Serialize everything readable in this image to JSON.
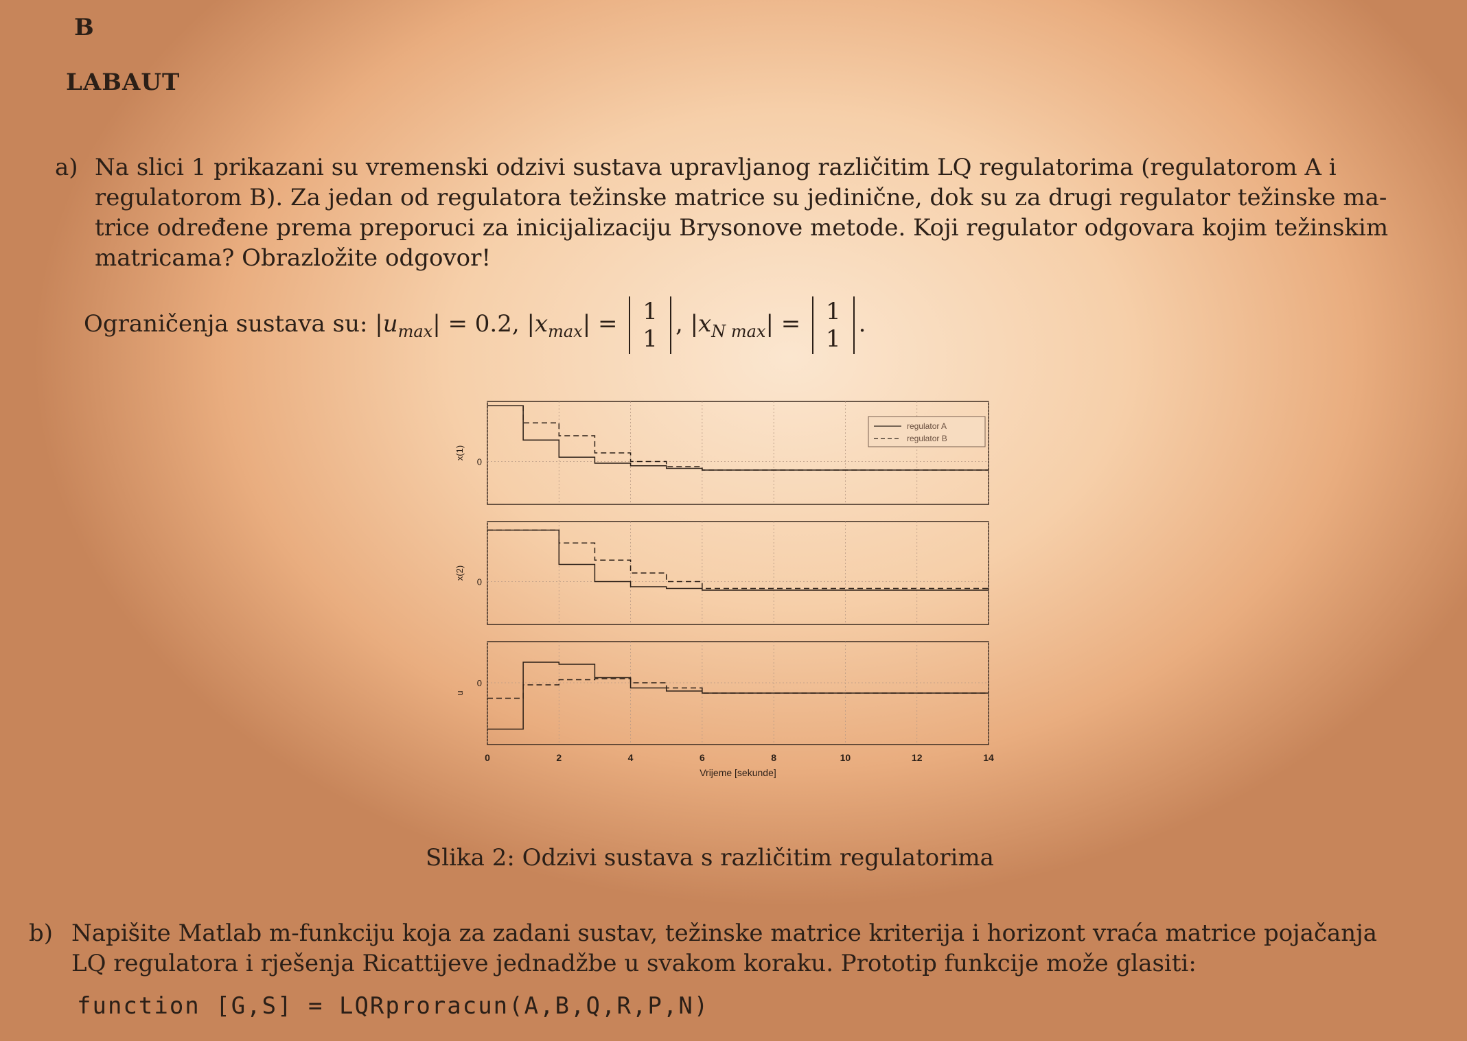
{
  "page_letter": "B",
  "heading": "LABAUT",
  "part_a": {
    "label": "a)",
    "lines": [
      "Na slici 1 prikazani su vremenski odzivi sustava upravljanog različitim LQ regulatorima (regulatorom A i",
      "regulatorom B). Za jedan od regulatora težinske matrice su jedinične, dok su za drugi regulator težinske ma-",
      "trice određene prema preporuci za inicijalizaciju Brysonove metode. Koji regulator odgovara kojim težinskim",
      "matricama? Obrazložite odgovor!"
    ],
    "constraints_prefix": "Ograničenja sustava su:",
    "u_max": "|u",
    "u_sub": "max",
    "u_val": "| = 0.2,",
    "x_max": "|x",
    "x_sub": "max",
    "x_eq": "| =",
    "xN_max": "|x",
    "xN_sub": "N max",
    "xN_eq": "| =",
    "vec_top": "1",
    "vec_bot": "1"
  },
  "figure": {
    "caption": "Slika 2: Odzivi sustava s različitim regulatorima"
  },
  "chart_data": {
    "type": "line",
    "step": true,
    "xlabel": "Vrijeme [sekunde]",
    "xlim": [
      0,
      14
    ],
    "xticks": [
      "0",
      "2",
      "4",
      "6",
      "8",
      "10",
      "12",
      "14"
    ],
    "legend": [
      "regulator A",
      "regulator B"
    ],
    "legend_position": "top-right",
    "grid": true,
    "panels": [
      {
        "ylabel": "x(1)",
        "ytick": "0",
        "ylim": [
          -0.5,
          0.7
        ],
        "series": [
          {
            "name": "regulator A",
            "x": [
              0,
              1,
              2,
              3,
              4,
              5,
              6,
              14
            ],
            "values": [
              0.65,
              0.25,
              0.05,
              -0.02,
              -0.05,
              -0.08,
              -0.1,
              -0.1
            ]
          },
          {
            "name": "regulator B",
            "x": [
              0,
              1,
              2,
              3,
              4,
              5,
              6,
              14
            ],
            "values": [
              0.65,
              0.45,
              0.3,
              0.1,
              0.0,
              -0.06,
              -0.1,
              -0.1
            ]
          }
        ]
      },
      {
        "ylabel": "x(2)",
        "ytick": "0",
        "ylim": [
          -0.5,
          0.7
        ],
        "series": [
          {
            "name": "regulator A",
            "x": [
              0,
              1,
              2,
              3,
              4,
              5,
              6,
              14
            ],
            "values": [
              0.6,
              0.6,
              0.2,
              0.0,
              -0.06,
              -0.08,
              -0.1,
              -0.1
            ]
          },
          {
            "name": "regulator B",
            "x": [
              0,
              1,
              2,
              3,
              4,
              5,
              6,
              14
            ],
            "values": [
              0.6,
              0.6,
              0.45,
              0.25,
              0.1,
              0.0,
              -0.08,
              -0.1
            ]
          }
        ]
      },
      {
        "ylabel": "u",
        "ytick": "0",
        "ylim": [
          -0.6,
          0.4
        ],
        "series": [
          {
            "name": "regulator A",
            "x": [
              0,
              1,
              2,
              3,
              4,
              5,
              6,
              14
            ],
            "values": [
              -0.45,
              0.2,
              0.18,
              0.05,
              -0.05,
              -0.08,
              -0.1,
              -0.1
            ]
          },
          {
            "name": "regulator B",
            "x": [
              0,
              1,
              2,
              3,
              4,
              5,
              6,
              14
            ],
            "values": [
              -0.15,
              -0.02,
              0.03,
              0.04,
              0.0,
              -0.05,
              -0.1,
              -0.1
            ]
          }
        ]
      }
    ]
  },
  "part_b": {
    "label": "b)",
    "lines": [
      "Napišite Matlab m-funkciju koja za zadani sustav, težinske matrice kriterija i horizont vraća matrice pojačanja",
      "LQ regulatora i rješenja Ricattijeve jednadžbe u svakom koraku. Prototip funkcije može glasiti:"
    ],
    "code": "function [G,S] = LQRproracun(A,B,Q,R,P,N)"
  }
}
